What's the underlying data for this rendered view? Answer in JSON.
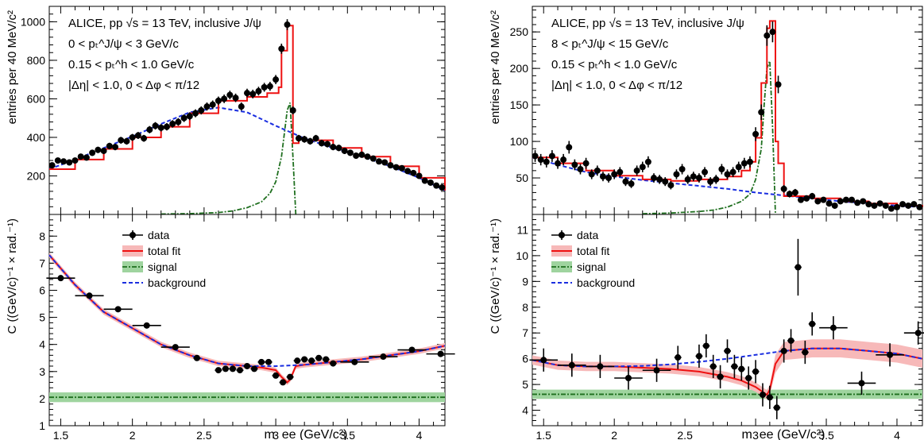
{
  "figure": {
    "panels": [
      {
        "id": "left",
        "annotation_lines": [
          "ALICE, pp √s = 13 TeV, inclusive J/ψ",
          "0 < pₜ^J/ψ < 3 GeV/c",
          "0.15 < pₜ^h < 1.0 GeV/c",
          "|Δη| < 1.0, 0 < Δφ < π/12"
        ]
      },
      {
        "id": "right",
        "annotation_lines": [
          "ALICE, pp √s = 13 TeV, inclusive J/ψ",
          "8 < pₜ^J/ψ < 15 GeV/c",
          "0.15 < pₜ^h < 1.0 GeV/c",
          "|Δη| < 1.0, 0 < Δφ < π/12"
        ]
      }
    ],
    "legend": [
      "data",
      "total fit",
      "signal",
      "background"
    ],
    "colors": {
      "data": "#000000",
      "total_fit": "#ee1111",
      "fit_band": "#f7b9b9",
      "signal": "#1f6f1f",
      "signal_band": "#9fd49f",
      "background": "#1a2ee0"
    }
  },
  "chart_data": [
    {
      "type": "line",
      "panel": "left-top",
      "xlabel": "m_ee (GeV/c²)",
      "ylabel": "entries per 40 MeV/c²",
      "xlim": [
        1.42,
        4.18
      ],
      "ylim": [
        0,
        1080
      ],
      "yticks": [
        200,
        400,
        600,
        800,
        1000
      ],
      "xticks": [
        1.5,
        2,
        2.5,
        3,
        3.5,
        4
      ],
      "data": {
        "x": [
          1.44,
          1.48,
          1.52,
          1.56,
          1.6,
          1.64,
          1.68,
          1.72,
          1.76,
          1.8,
          1.84,
          1.88,
          1.92,
          1.96,
          2.0,
          2.04,
          2.08,
          2.12,
          2.16,
          2.2,
          2.24,
          2.28,
          2.32,
          2.36,
          2.4,
          2.44,
          2.48,
          2.52,
          2.56,
          2.6,
          2.64,
          2.68,
          2.72,
          2.76,
          2.8,
          2.84,
          2.88,
          2.92,
          2.96,
          3.0,
          3.04,
          3.08,
          3.12,
          3.16,
          3.2,
          3.24,
          3.28,
          3.32,
          3.36,
          3.4,
          3.44,
          3.48,
          3.52,
          3.56,
          3.6,
          3.64,
          3.68,
          3.72,
          3.76,
          3.8,
          3.84,
          3.88,
          3.92,
          3.96,
          4.0,
          4.04,
          4.08,
          4.12,
          4.16
        ],
        "y": [
          255,
          280,
          275,
          270,
          280,
          300,
          295,
          320,
          335,
          330,
          355,
          350,
          385,
          380,
          400,
          410,
          395,
          440,
          460,
          450,
          455,
          470,
          480,
          500,
          510,
          525,
          540,
          560,
          570,
          590,
          600,
          620,
          605,
          560,
          630,
          625,
          640,
          660,
          665,
          700,
          860,
          985,
          540,
          395,
          390,
          380,
          395,
          370,
          365,
          350,
          345,
          330,
          320,
          305,
          310,
          300,
          290,
          275,
          270,
          255,
          245,
          240,
          225,
          215,
          200,
          175,
          165,
          150,
          140
        ]
      },
      "total_fit": {
        "x": [
          1.42,
          1.6,
          1.8,
          2.0,
          2.2,
          2.4,
          2.6,
          2.8,
          2.94,
          3.02,
          3.04,
          3.08,
          3.1,
          3.12,
          3.16,
          3.2,
          3.4,
          3.6,
          3.8,
          4.0,
          4.18
        ],
        "y": [
          235,
          285,
          340,
          400,
          455,
          525,
          590,
          610,
          630,
          660,
          850,
          980,
          980,
          370,
          395,
          385,
          345,
          300,
          250,
          190,
          125
        ]
      },
      "background": {
        "x": [
          1.42,
          1.6,
          1.8,
          2.0,
          2.2,
          2.4,
          2.6,
          2.8,
          3.0,
          3.2,
          3.4,
          3.6,
          3.8,
          4.0,
          4.18
        ],
        "y": [
          235,
          285,
          345,
          405,
          470,
          530,
          555,
          530,
          460,
          395,
          345,
          300,
          250,
          190,
          125
        ]
      },
      "signal": {
        "x": [
          2.2,
          2.4,
          2.6,
          2.7,
          2.8,
          2.9,
          2.96,
          3.0,
          3.04,
          3.06,
          3.08,
          3.1,
          3.12,
          3.14
        ],
        "y": [
          2,
          4,
          10,
          18,
          35,
          65,
          110,
          170,
          300,
          420,
          540,
          580,
          300,
          0
        ]
      }
    },
    {
      "type": "line",
      "panel": "left-bottom",
      "xlabel": "m_ee (GeV/c²)",
      "ylabel": "C ((GeV/c)⁻¹ × rad.⁻¹)",
      "xlim": [
        1.42,
        4.18
      ],
      "ylim": [
        1,
        8.8
      ],
      "yticks": [
        1,
        2,
        3,
        4,
        5,
        6,
        7,
        8
      ],
      "xticks": [
        1.5,
        2,
        2.5,
        3,
        3.5,
        4
      ],
      "data": {
        "x": [
          1.5,
          1.7,
          1.9,
          2.1,
          2.3,
          2.45,
          2.6,
          2.65,
          2.7,
          2.75,
          2.8,
          2.85,
          2.9,
          2.95,
          3.0,
          3.05,
          3.1,
          3.15,
          3.2,
          3.25,
          3.3,
          3.35,
          3.4,
          3.55,
          3.75,
          3.95,
          4.15
        ],
        "y": [
          6.45,
          5.8,
          5.3,
          4.7,
          3.9,
          3.5,
          3.05,
          3.1,
          3.1,
          3.05,
          3.2,
          3.1,
          3.35,
          3.35,
          2.85,
          2.6,
          2.8,
          3.4,
          3.45,
          3.4,
          3.5,
          3.45,
          3.3,
          3.35,
          3.55,
          3.8,
          3.65
        ]
      },
      "total_fit": {
        "x": [
          1.42,
          1.6,
          1.8,
          2.0,
          2.2,
          2.4,
          2.6,
          2.8,
          2.9,
          3.0,
          3.04,
          3.08,
          3.1,
          3.14,
          3.2,
          3.4,
          3.6,
          3.8,
          4.0,
          4.18
        ],
        "y": [
          7.3,
          6.2,
          5.2,
          4.6,
          4.0,
          3.6,
          3.3,
          3.2,
          3.15,
          3.05,
          2.8,
          2.6,
          2.7,
          3.2,
          3.25,
          3.35,
          3.45,
          3.6,
          3.75,
          3.95
        ]
      },
      "background": {
        "x": [
          1.42,
          1.6,
          1.8,
          2.0,
          2.2,
          2.4,
          2.6,
          2.8,
          3.0,
          3.2,
          3.4,
          3.6,
          3.8,
          4.0,
          4.18
        ],
        "y": [
          7.3,
          6.2,
          5.2,
          4.6,
          4.0,
          3.6,
          3.3,
          3.2,
          3.2,
          3.25,
          3.35,
          3.45,
          3.6,
          3.75,
          3.95
        ]
      },
      "signal_level": 2.05
    },
    {
      "type": "line",
      "panel": "right-top",
      "xlabel": "m_ee (GeV/c²)",
      "ylabel": "entries per 40 MeV/c²",
      "xlim": [
        1.42,
        4.18
      ],
      "ylim": [
        0,
        285
      ],
      "yticks": [
        50,
        100,
        150,
        200,
        250
      ],
      "xticks": [
        1.5,
        2,
        2.5,
        3,
        3.5,
        4
      ],
      "data": {
        "x": [
          1.44,
          1.48,
          1.52,
          1.56,
          1.6,
          1.64,
          1.68,
          1.72,
          1.76,
          1.8,
          1.84,
          1.88,
          1.92,
          1.96,
          2.0,
          2.04,
          2.08,
          2.12,
          2.16,
          2.2,
          2.24,
          2.28,
          2.32,
          2.36,
          2.4,
          2.44,
          2.48,
          2.52,
          2.56,
          2.6,
          2.64,
          2.68,
          2.72,
          2.76,
          2.8,
          2.84,
          2.88,
          2.92,
          2.96,
          3.0,
          3.04,
          3.08,
          3.12,
          3.16,
          3.2,
          3.24,
          3.28,
          3.32,
          3.36,
          3.4,
          3.44,
          3.48,
          3.52,
          3.56,
          3.6,
          3.64,
          3.68,
          3.72,
          3.76,
          3.8,
          3.84,
          3.88,
          3.92,
          3.96,
          4.0,
          4.04,
          4.08,
          4.12,
          4.16
        ],
        "y": [
          80,
          75,
          72,
          80,
          70,
          75,
          92,
          68,
          62,
          70,
          55,
          60,
          52,
          50,
          55,
          58,
          45,
          42,
          60,
          65,
          72,
          50,
          48,
          45,
          40,
          55,
          62,
          48,
          52,
          50,
          58,
          45,
          48,
          62,
          55,
          58,
          65,
          70,
          72,
          110,
          140,
          245,
          250,
          178,
          35,
          28,
          30,
          20,
          22,
          25,
          18,
          20,
          15,
          12,
          18,
          20,
          20,
          16,
          18,
          14,
          12,
          15,
          12,
          8,
          10,
          14,
          12,
          14,
          10
        ]
      },
      "total_fit": {
        "x": [
          1.42,
          1.6,
          1.8,
          2.0,
          2.2,
          2.4,
          2.6,
          2.8,
          2.9,
          2.96,
          3.0,
          3.04,
          3.08,
          3.1,
          3.12,
          3.14,
          3.16,
          3.2,
          3.4,
          3.6,
          3.8,
          4.0,
          4.18
        ],
        "y": [
          78,
          70,
          60,
          53,
          48,
          46,
          48,
          52,
          60,
          72,
          105,
          180,
          255,
          265,
          265,
          100,
          70,
          25,
          22,
          18,
          15,
          12,
          10
        ]
      },
      "background": {
        "x": [
          1.42,
          1.6,
          1.8,
          2.0,
          2.2,
          2.4,
          2.6,
          2.8,
          3.0,
          3.2,
          3.4,
          3.6,
          3.8,
          4.0,
          4.18
        ],
        "y": [
          78,
          68,
          58,
          52,
          47,
          43,
          39,
          35,
          30,
          26,
          22,
          18,
          15,
          12,
          10
        ]
      },
      "signal": {
        "x": [
          2.2,
          2.4,
          2.6,
          2.7,
          2.8,
          2.9,
          2.96,
          3.0,
          3.04,
          3.06,
          3.08,
          3.1,
          3.12,
          3.14
        ],
        "y": [
          1,
          2,
          4,
          6,
          10,
          18,
          28,
          48,
          90,
          150,
          200,
          210,
          120,
          0
        ]
      }
    },
    {
      "type": "line",
      "panel": "right-bottom",
      "xlabel": "m_ee (GeV/c²)",
      "ylabel": "C ((GeV/c)⁻¹ × rad.⁻¹)",
      "xlim": [
        1.42,
        4.18
      ],
      "ylim": [
        3.4,
        11.6
      ],
      "yticks": [
        4,
        5,
        6,
        7,
        8,
        9,
        10,
        11
      ],
      "xticks": [
        1.5,
        2,
        2.5,
        3,
        3.5,
        4
      ],
      "data": {
        "x": [
          1.5,
          1.7,
          1.9,
          2.1,
          2.3,
          2.45,
          2.6,
          2.65,
          2.7,
          2.75,
          2.8,
          2.85,
          2.9,
          2.95,
          3.0,
          3.05,
          3.1,
          3.15,
          3.2,
          3.25,
          3.3,
          3.35,
          3.4,
          3.55,
          3.75,
          3.95,
          4.15
        ],
        "y": [
          5.95,
          5.75,
          5.7,
          5.25,
          5.55,
          6.05,
          6.1,
          6.5,
          5.7,
          5.3,
          6.3,
          5.7,
          5.6,
          5.25,
          5.5,
          4.6,
          4.5,
          4.1,
          6.3,
          6.7,
          9.55,
          6.25,
          7.35,
          7.2,
          5.05,
          6.15,
          7.0
        ]
      },
      "total_fit": {
        "x": [
          1.42,
          1.6,
          1.8,
          2.0,
          2.2,
          2.4,
          2.6,
          2.8,
          2.9,
          3.0,
          3.04,
          3.08,
          3.1,
          3.14,
          3.2,
          3.4,
          3.6,
          3.8,
          4.0,
          4.18
        ],
        "y": [
          5.95,
          5.75,
          5.7,
          5.7,
          5.65,
          5.6,
          5.5,
          5.3,
          5.15,
          4.9,
          4.75,
          4.6,
          4.8,
          5.8,
          6.3,
          6.4,
          6.4,
          6.3,
          6.2,
          6.0
        ]
      },
      "background": {
        "x": [
          1.42,
          1.6,
          1.8,
          2.0,
          2.2,
          2.4,
          2.6,
          2.8,
          3.0,
          3.2,
          3.4,
          3.6,
          3.8,
          4.0,
          4.18
        ],
        "y": [
          5.95,
          5.75,
          5.7,
          5.7,
          5.72,
          5.78,
          5.88,
          6.0,
          6.15,
          6.3,
          6.4,
          6.4,
          6.3,
          6.2,
          6.0
        ]
      },
      "signal_level": 4.62
    }
  ]
}
